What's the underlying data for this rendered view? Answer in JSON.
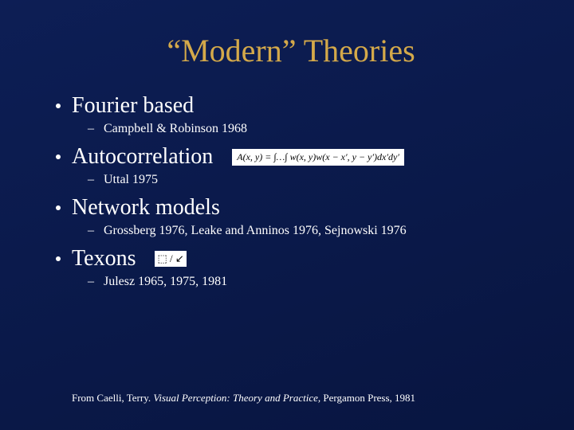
{
  "title": "“Modern” Theories",
  "items": [
    {
      "label": "Fourier based",
      "sub": [
        "Campbell & Robinson 1968"
      ],
      "graphic": null
    },
    {
      "label": "Autocorrelation",
      "sub": [
        "Uttal 1975"
      ],
      "graphic": "A(x, y) = ∫…∫ w(x, y)w(x − x′, y − y′)dx′dy′"
    },
    {
      "label": "Network models",
      "sub": [
        "Grossberg 1976, Leake and Anninos 1976, Sejnowski 1976"
      ],
      "graphic": null
    },
    {
      "label": "Texons",
      "sub": [
        "Julesz 1965, 1975, 1981"
      ],
      "graphic_small": "⬚ / ↙"
    }
  ],
  "citation": {
    "prefix": "From   Caelli, Terry. ",
    "title": "Visual Perception: Theory and Practice, ",
    "suffix": "Pergamon Press, 1981"
  },
  "colors": {
    "background_top": "#0d1e55",
    "background_bottom": "#081540",
    "title_color": "#d4a94a",
    "text_color": "#ffffff",
    "graphic_bg": "#ffffff",
    "graphic_text": "#000000"
  },
  "typography": {
    "title_fontsize": 40,
    "bullet_fontsize": 28,
    "sub_fontsize": 16,
    "citation_fontsize": 13,
    "font_family": "Georgia, Times New Roman, serif"
  }
}
